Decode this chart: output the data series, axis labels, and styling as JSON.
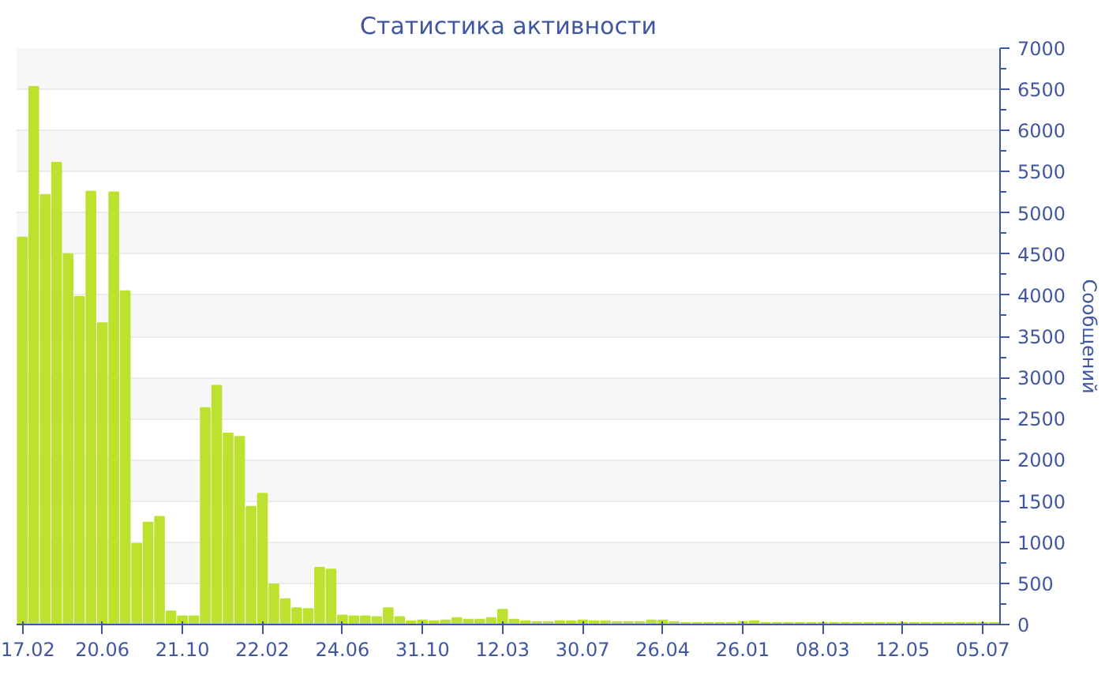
{
  "chart_data": {
    "type": "bar",
    "title": "Статистика активности",
    "ylabel": "Сообщений",
    "categories": [
      "17.02",
      null,
      null,
      null,
      null,
      null,
      null,
      "20.06",
      null,
      null,
      null,
      null,
      null,
      null,
      "21.10",
      null,
      null,
      null,
      null,
      null,
      null,
      "22.02",
      null,
      null,
      null,
      null,
      null,
      null,
      "24.06",
      null,
      null,
      null,
      null,
      null,
      null,
      "31.10",
      null,
      null,
      null,
      null,
      null,
      null,
      "12.03",
      null,
      null,
      null,
      null,
      null,
      null,
      "30.07",
      null,
      null,
      null,
      null,
      null,
      null,
      "26.04",
      null,
      null,
      null,
      null,
      null,
      null,
      "26.01",
      null,
      null,
      null,
      null,
      null,
      null,
      "08.03",
      null,
      null,
      null,
      null,
      null,
      null,
      "12.05",
      null,
      null,
      null,
      null,
      null,
      null,
      "05.07",
      null
    ],
    "values": [
      4700,
      6530,
      5220,
      5610,
      4500,
      3980,
      5260,
      3660,
      5250,
      4050,
      980,
      1240,
      1310,
      160,
      100,
      100,
      2630,
      2900,
      2320,
      2280,
      1430,
      1590,
      490,
      310,
      200,
      190,
      690,
      670,
      110,
      100,
      100,
      90,
      200,
      90,
      40,
      50,
      40,
      50,
      80,
      60,
      60,
      80,
      180,
      60,
      40,
      30,
      30,
      40,
      40,
      50,
      40,
      40,
      30,
      30,
      30,
      50,
      50,
      30,
      20,
      20,
      20,
      20,
      20,
      30,
      40,
      20,
      20,
      20,
      20,
      20,
      20,
      20,
      20,
      20,
      20,
      20,
      20,
      20,
      20,
      20,
      20,
      20,
      20,
      20,
      20,
      20
    ],
    "color": "#bde12f",
    "ylim": [
      0,
      7000
    ],
    "yticks": [
      0,
      500,
      1000,
      1500,
      2000,
      2500,
      3000,
      3500,
      4000,
      4500,
      5000,
      5500,
      6000,
      6500,
      7000
    ],
    "grid": "y"
  }
}
